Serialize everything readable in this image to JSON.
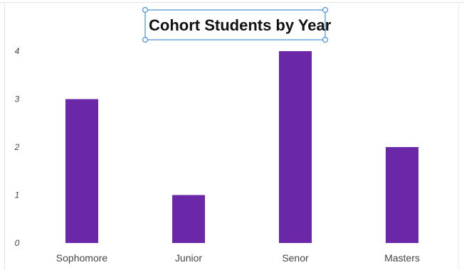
{
  "chart_data": {
    "type": "bar",
    "title": "Cohort Students by Year",
    "categories": [
      "Sophomore",
      "Junior",
      "Senor",
      "Masters"
    ],
    "values": [
      3,
      1,
      4,
      2
    ],
    "xlabel": "",
    "ylabel": "",
    "ylim": [
      0,
      4
    ],
    "yticks": [
      "0",
      "1",
      "2",
      "3",
      "4"
    ],
    "grid": false,
    "legend": "none",
    "bar_color": "#6a28a8",
    "title_selected": true,
    "selection_color": "#4a90d9"
  }
}
